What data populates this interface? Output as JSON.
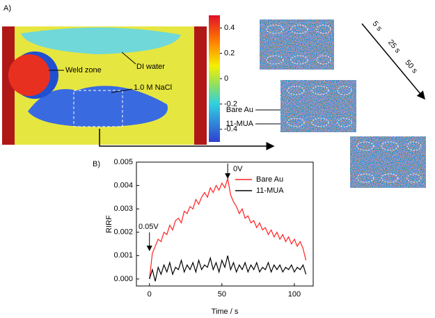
{
  "panel_a": {
    "label": "A)",
    "annotations": [
      "Weld zone",
      "DI water",
      "1.0 M NaCl"
    ],
    "colorbar": {
      "lim": [
        -0.5,
        0.5
      ],
      "ticks": [
        0.4,
        0.2,
        0,
        -0.2,
        -0.4
      ]
    },
    "time_labels": [
      "5 s",
      "25 s",
      "50 s"
    ],
    "surface_labels": [
      "Bare Au",
      "11-MUA"
    ]
  },
  "chart_data": {
    "type": "line",
    "panel_label": "B)",
    "x_label": "Time / s",
    "y_label": "RIRF",
    "annotations": [
      "0.05V",
      "0V"
    ],
    "xlim": [
      -9,
      113
    ],
    "xticks": [
      0,
      50,
      100
    ],
    "ylim": [
      -0.0003,
      0.005
    ],
    "yticks": [
      {
        "value": 0,
        "label": "0.000"
      },
      0.001,
      0.002,
      0.003,
      0.004,
      0.005
    ],
    "legend": "upper right",
    "grid": false,
    "x": [
      0,
      2,
      4,
      6,
      8,
      10,
      12,
      14,
      16,
      18,
      20,
      22,
      24,
      26,
      28,
      30,
      32,
      34,
      36,
      38,
      40,
      42,
      44,
      46,
      48,
      50,
      52,
      54,
      56,
      58,
      60,
      62,
      64,
      66,
      68,
      70,
      72,
      74,
      76,
      78,
      80,
      82,
      84,
      86,
      88,
      90,
      92,
      94,
      96,
      98,
      100,
      102,
      104,
      106,
      108
    ],
    "series": [
      {
        "name": "Bare Au",
        "color": "#ff2020",
        "values": [
          0.0,
          0.0011,
          0.0014,
          0.0017,
          0.0016,
          0.002,
          0.0019,
          0.0023,
          0.0021,
          0.0025,
          0.0026,
          0.0024,
          0.0029,
          0.0028,
          0.0031,
          0.003,
          0.0034,
          0.0032,
          0.0035,
          0.0037,
          0.0035,
          0.0039,
          0.0037,
          0.004,
          0.0038,
          0.0041,
          0.0039,
          0.0043,
          0.0036,
          0.0033,
          0.0031,
          0.0028,
          0.003,
          0.0026,
          0.0027,
          0.0024,
          0.0025,
          0.0022,
          0.0024,
          0.0021,
          0.0022,
          0.0019,
          0.0021,
          0.0018,
          0.002,
          0.0017,
          0.0019,
          0.0016,
          0.0018,
          0.0015,
          0.0017,
          0.0014,
          0.0016,
          0.0013,
          0.0008
        ]
      },
      {
        "name": "11-MUA",
        "color": "#000000",
        "values": [
          0.0,
          0.0004,
          -0.0001,
          0.0005,
          0.0002,
          0.0006,
          0.0003,
          0.0007,
          0.0002,
          0.0005,
          0.0004,
          0.0008,
          0.0003,
          0.0006,
          0.0004,
          0.0007,
          0.0003,
          0.0008,
          0.0004,
          0.0006,
          0.0005,
          0.0009,
          0.0004,
          0.0007,
          0.0003,
          0.0008,
          0.0005,
          0.001,
          0.0004,
          0.0007,
          0.0003,
          0.0006,
          0.0004,
          0.0007,
          0.0003,
          0.0006,
          0.0004,
          0.0007,
          0.0003,
          0.0005,
          0.0004,
          0.0007,
          0.0003,
          0.0006,
          0.0004,
          0.0006,
          0.0003,
          0.0005,
          0.0004,
          0.0006,
          0.0003,
          0.0005,
          0.0004,
          0.0006,
          0.0002
        ]
      }
    ]
  }
}
